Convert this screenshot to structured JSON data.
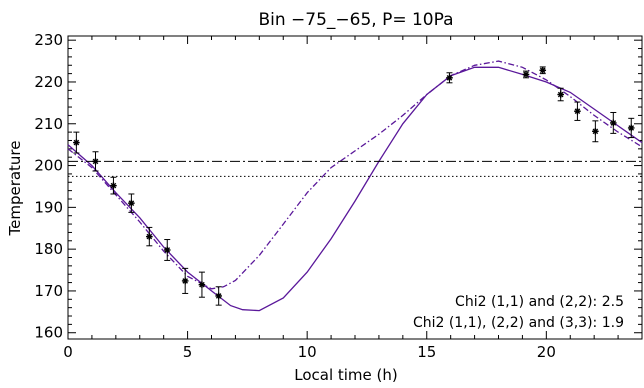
{
  "chart_data": {
    "type": "line",
    "title": "Bin −75_−65, P= 10Pa",
    "xlabel": "Local time (h)",
    "ylabel": "Temperature",
    "xlim": [
      0,
      24
    ],
    "ylim": [
      158.5,
      231
    ],
    "xticks": [
      0,
      5,
      10,
      15,
      20
    ],
    "yticks": [
      160,
      170,
      180,
      190,
      200,
      210,
      220,
      230
    ],
    "grid": false,
    "series": [
      {
        "style": "solid",
        "color": "#5a189a",
        "x": [
          0,
          1,
          2,
          3,
          4,
          5,
          6,
          6.8,
          7.3,
          8,
          9,
          10,
          11,
          12,
          13,
          14,
          15,
          16,
          17,
          18,
          19,
          20,
          21,
          22,
          23,
          24
        ],
        "y": [
          205,
          200,
          193.5,
          187.5,
          180.5,
          174.5,
          170,
          166.5,
          165.5,
          165.3,
          168.3,
          174.5,
          182.5,
          191.5,
          201,
          210,
          217,
          221.5,
          223.5,
          223.5,
          221.8,
          220,
          217.5,
          213.5,
          209.5,
          205.5
        ]
      },
      {
        "style": "dash-dot",
        "color": "#5a189a",
        "x": [
          0,
          1,
          2,
          3,
          4,
          5,
          6,
          6.5,
          7,
          8,
          9,
          10,
          11,
          12,
          13,
          14,
          15,
          16,
          17,
          18,
          19,
          20,
          21,
          22,
          23,
          24
        ],
        "y": [
          204,
          199.5,
          193,
          186.5,
          179.5,
          173.5,
          170.5,
          171,
          172.5,
          178.5,
          186,
          193.5,
          199.5,
          203.5,
          207.5,
          212,
          217,
          221.5,
          224,
          225,
          223.5,
          220.5,
          216.5,
          212,
          208,
          204.5
        ]
      },
      {
        "style": "dash-dot-horizontal",
        "color": "#000000",
        "y": 201
      },
      {
        "style": "dotted-horizontal",
        "color": "#000000",
        "y": 197.4
      }
    ],
    "observations": {
      "marker": "asterisk",
      "points": [
        {
          "x": 0.35,
          "y": 205.5,
          "err": 2.5
        },
        {
          "x": 1.15,
          "y": 201,
          "err": 2.3
        },
        {
          "x": 1.9,
          "y": 195.2,
          "err": 2
        },
        {
          "x": 2.65,
          "y": 191,
          "err": 2.2
        },
        {
          "x": 3.4,
          "y": 183,
          "err": 2.2
        },
        {
          "x": 4.15,
          "y": 179.8,
          "err": 2.5
        },
        {
          "x": 4.9,
          "y": 172.4,
          "err": 3
        },
        {
          "x": 5.6,
          "y": 171.5,
          "err": 3
        },
        {
          "x": 6.3,
          "y": 168.8,
          "err": 2.2
        },
        {
          "x": 15.95,
          "y": 221,
          "err": 1.2
        },
        {
          "x": 19.15,
          "y": 221.8,
          "err": 0.8
        },
        {
          "x": 19.85,
          "y": 222.8,
          "err": 0.8
        },
        {
          "x": 20.6,
          "y": 217,
          "err": 1.5
        },
        {
          "x": 21.3,
          "y": 213,
          "err": 2.2
        },
        {
          "x": 22.05,
          "y": 208.2,
          "err": 2.5
        },
        {
          "x": 22.8,
          "y": 210.2,
          "err": 2.5
        },
        {
          "x": 23.55,
          "y": 209,
          "err": 2.3
        }
      ]
    },
    "annotations": [
      "Chi2 (1,1) and (2,2): 2.5",
      "Chi2 (1,1), (2,2) and (3,3): 1.9"
    ]
  }
}
